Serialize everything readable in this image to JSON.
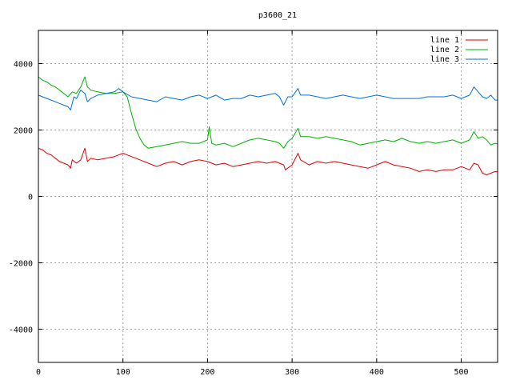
{
  "chart_data": {
    "type": "line",
    "title": "p3600_21",
    "xlabel": "",
    "ylabel": "",
    "xlim": [
      0,
      543
    ],
    "ylim": [
      -5000,
      5000
    ],
    "x_ticks": [
      0,
      100,
      200,
      300,
      400,
      500
    ],
    "y_ticks": [
      -4000,
      -2000,
      0,
      2000,
      4000
    ],
    "grid": true,
    "legend_position": "top-right",
    "series": [
      {
        "name": "line 1",
        "color": "#e00000",
        "points": [
          [
            0,
            1450
          ],
          [
            5,
            1400
          ],
          [
            10,
            1300
          ],
          [
            15,
            1250
          ],
          [
            20,
            1150
          ],
          [
            25,
            1050
          ],
          [
            30,
            1000
          ],
          [
            35,
            950
          ],
          [
            38,
            850
          ],
          [
            40,
            1100
          ],
          [
            45,
            1000
          ],
          [
            50,
            1100
          ],
          [
            55,
            1450
          ],
          [
            58,
            1050
          ],
          [
            62,
            1150
          ],
          [
            70,
            1100
          ],
          [
            80,
            1150
          ],
          [
            90,
            1200
          ],
          [
            100,
            1300
          ],
          [
            110,
            1200
          ],
          [
            120,
            1100
          ],
          [
            130,
            1000
          ],
          [
            140,
            900
          ],
          [
            150,
            1000
          ],
          [
            160,
            1050
          ],
          [
            170,
            950
          ],
          [
            180,
            1050
          ],
          [
            190,
            1100
          ],
          [
            200,
            1050
          ],
          [
            210,
            950
          ],
          [
            220,
            1000
          ],
          [
            230,
            900
          ],
          [
            240,
            950
          ],
          [
            250,
            1000
          ],
          [
            260,
            1050
          ],
          [
            270,
            1000
          ],
          [
            280,
            1050
          ],
          [
            290,
            950
          ],
          [
            292,
            800
          ],
          [
            300,
            950
          ],
          [
            307,
            1300
          ],
          [
            310,
            1100
          ],
          [
            320,
            950
          ],
          [
            330,
            1050
          ],
          [
            340,
            1000
          ],
          [
            350,
            1050
          ],
          [
            360,
            1000
          ],
          [
            370,
            950
          ],
          [
            380,
            900
          ],
          [
            390,
            850
          ],
          [
            400,
            950
          ],
          [
            410,
            1050
          ],
          [
            420,
            950
          ],
          [
            430,
            900
          ],
          [
            440,
            850
          ],
          [
            450,
            750
          ],
          [
            460,
            800
          ],
          [
            470,
            750
          ],
          [
            480,
            800
          ],
          [
            490,
            800
          ],
          [
            500,
            900
          ],
          [
            510,
            800
          ],
          [
            515,
            1000
          ],
          [
            520,
            950
          ],
          [
            525,
            700
          ],
          [
            530,
            650
          ],
          [
            535,
            700
          ],
          [
            540,
            750
          ],
          [
            543,
            750
          ]
        ]
      },
      {
        "name": "line 2",
        "color": "#00b000",
        "points": [
          [
            0,
            3600
          ],
          [
            5,
            3500
          ],
          [
            10,
            3450
          ],
          [
            15,
            3350
          ],
          [
            20,
            3300
          ],
          [
            25,
            3200
          ],
          [
            30,
            3100
          ],
          [
            35,
            3000
          ],
          [
            40,
            3150
          ],
          [
            45,
            3100
          ],
          [
            50,
            3300
          ],
          [
            55,
            3600
          ],
          [
            58,
            3300
          ],
          [
            62,
            3200
          ],
          [
            70,
            3150
          ],
          [
            80,
            3100
          ],
          [
            90,
            3100
          ],
          [
            100,
            3150
          ],
          [
            105,
            3000
          ],
          [
            110,
            2500
          ],
          [
            115,
            2050
          ],
          [
            120,
            1750
          ],
          [
            125,
            1550
          ],
          [
            130,
            1450
          ],
          [
            140,
            1500
          ],
          [
            150,
            1550
          ],
          [
            160,
            1600
          ],
          [
            170,
            1650
          ],
          [
            180,
            1600
          ],
          [
            190,
            1600
          ],
          [
            200,
            1700
          ],
          [
            202,
            2100
          ],
          [
            205,
            1600
          ],
          [
            210,
            1550
          ],
          [
            220,
            1600
          ],
          [
            230,
            1500
          ],
          [
            240,
            1600
          ],
          [
            250,
            1700
          ],
          [
            260,
            1750
          ],
          [
            270,
            1700
          ],
          [
            280,
            1650
          ],
          [
            285,
            1600
          ],
          [
            290,
            1450
          ],
          [
            295,
            1650
          ],
          [
            300,
            1750
          ],
          [
            307,
            2050
          ],
          [
            310,
            1800
          ],
          [
            320,
            1800
          ],
          [
            330,
            1750
          ],
          [
            340,
            1800
          ],
          [
            350,
            1750
          ],
          [
            360,
            1700
          ],
          [
            370,
            1650
          ],
          [
            380,
            1550
          ],
          [
            390,
            1600
          ],
          [
            400,
            1650
          ],
          [
            410,
            1700
          ],
          [
            420,
            1650
          ],
          [
            430,
            1750
          ],
          [
            440,
            1650
          ],
          [
            450,
            1600
          ],
          [
            460,
            1650
          ],
          [
            470,
            1600
          ],
          [
            480,
            1650
          ],
          [
            490,
            1700
          ],
          [
            500,
            1600
          ],
          [
            510,
            1700
          ],
          [
            515,
            1950
          ],
          [
            520,
            1750
          ],
          [
            525,
            1800
          ],
          [
            530,
            1700
          ],
          [
            535,
            1550
          ],
          [
            540,
            1600
          ],
          [
            543,
            1580
          ]
        ]
      },
      {
        "name": "line 3",
        "color": "#0070e0",
        "points": [
          [
            0,
            3050
          ],
          [
            5,
            3000
          ],
          [
            10,
            2950
          ],
          [
            15,
            2900
          ],
          [
            20,
            2850
          ],
          [
            25,
            2800
          ],
          [
            30,
            2750
          ],
          [
            35,
            2700
          ],
          [
            38,
            2600
          ],
          [
            42,
            3000
          ],
          [
            45,
            2950
          ],
          [
            50,
            3200
          ],
          [
            55,
            3100
          ],
          [
            58,
            2850
          ],
          [
            62,
            2950
          ],
          [
            70,
            3050
          ],
          [
            80,
            3100
          ],
          [
            90,
            3150
          ],
          [
            95,
            3250
          ],
          [
            100,
            3150
          ],
          [
            110,
            3000
          ],
          [
            120,
            2950
          ],
          [
            130,
            2900
          ],
          [
            140,
            2850
          ],
          [
            150,
            3000
          ],
          [
            160,
            2950
          ],
          [
            170,
            2900
          ],
          [
            180,
            3000
          ],
          [
            190,
            3050
          ],
          [
            200,
            2950
          ],
          [
            210,
            3050
          ],
          [
            220,
            2900
          ],
          [
            230,
            2950
          ],
          [
            240,
            2950
          ],
          [
            250,
            3050
          ],
          [
            260,
            3000
          ],
          [
            270,
            3050
          ],
          [
            280,
            3100
          ],
          [
            285,
            3000
          ],
          [
            290,
            2750
          ],
          [
            295,
            3000
          ],
          [
            300,
            3000
          ],
          [
            307,
            3250
          ],
          [
            310,
            3050
          ],
          [
            320,
            3050
          ],
          [
            330,
            3000
          ],
          [
            340,
            2950
          ],
          [
            350,
            3000
          ],
          [
            360,
            3050
          ],
          [
            370,
            3000
          ],
          [
            380,
            2950
          ],
          [
            390,
            3000
          ],
          [
            400,
            3050
          ],
          [
            410,
            3000
          ],
          [
            420,
            2950
          ],
          [
            430,
            2950
          ],
          [
            440,
            2950
          ],
          [
            450,
            2950
          ],
          [
            460,
            3000
          ],
          [
            470,
            3000
          ],
          [
            480,
            3000
          ],
          [
            490,
            3050
          ],
          [
            500,
            2950
          ],
          [
            510,
            3050
          ],
          [
            515,
            3300
          ],
          [
            520,
            3150
          ],
          [
            525,
            3000
          ],
          [
            530,
            2950
          ],
          [
            535,
            3050
          ],
          [
            540,
            2900
          ],
          [
            543,
            2900
          ]
        ]
      }
    ]
  }
}
